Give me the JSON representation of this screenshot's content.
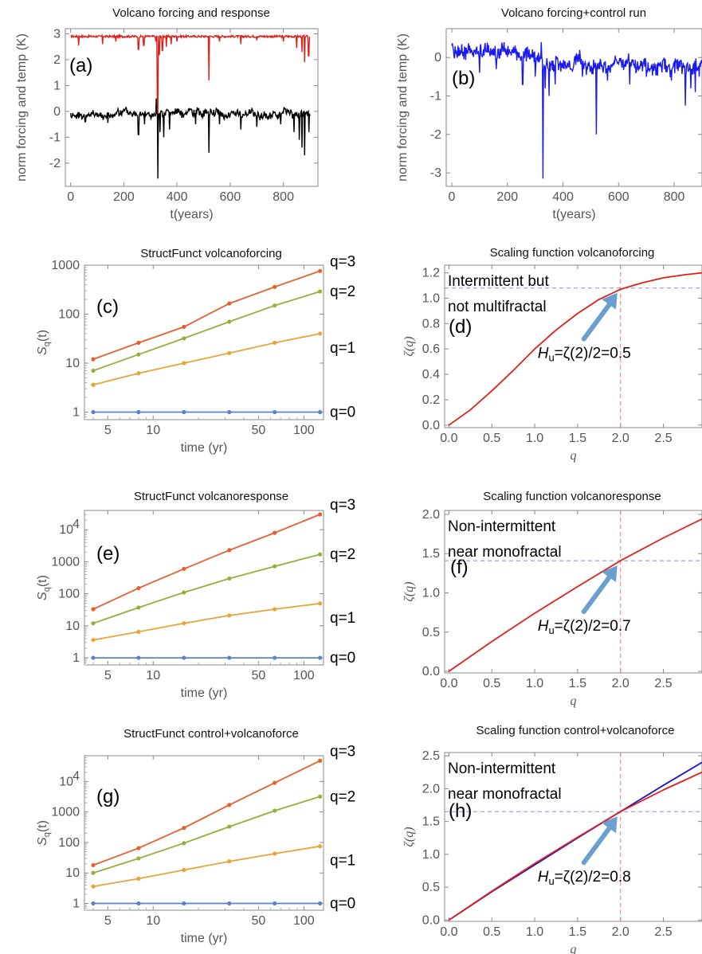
{
  "chart_data": [
    {
      "id": "a",
      "type": "line",
      "title": "Volcano forcing and response",
      "panel_label": "(a)",
      "xlabel": "t(years)",
      "ylabel": "norm forcing and temp (K)",
      "xlim": [
        -20,
        930
      ],
      "ylim": [
        -2.9,
        3.2
      ],
      "xticks": [
        0,
        200,
        400,
        600,
        800
      ],
      "yticks": [
        -2,
        -1,
        0,
        1,
        2,
        3
      ],
      "series": [
        {
          "color": "#e0201a",
          "base": 2.9,
          "dips": [
            [
              30,
              2.55
            ],
            [
              120,
              2.6
            ],
            [
              170,
              2.7
            ],
            [
              255,
              2.4
            ],
            [
              275,
              2.55
            ],
            [
              320,
              2.7
            ],
            [
              327,
              -0.15
            ],
            [
              333,
              2.2
            ],
            [
              345,
              2.35
            ],
            [
              360,
              2.5
            ],
            [
              378,
              2.6
            ],
            [
              400,
              2.7
            ],
            [
              520,
              1.2
            ],
            [
              560,
              2.7
            ],
            [
              640,
              2.6
            ],
            [
              700,
              2.75
            ],
            [
              800,
              2.7
            ],
            [
              850,
              2.45
            ],
            [
              870,
              2.3
            ],
            [
              880,
              1.9
            ],
            [
              895,
              2.15
            ]
          ]
        },
        {
          "color": "#000000",
          "base": -0.1,
          "dips": [
            [
              55,
              -0.4
            ],
            [
              140,
              -0.45
            ],
            [
              255,
              -0.9
            ],
            [
              278,
              -0.5
            ],
            [
              322,
              0.5
            ],
            [
              328,
              -2.6
            ],
            [
              336,
              -0.8
            ],
            [
              350,
              -1.0
            ],
            [
              372,
              -0.7
            ],
            [
              470,
              -0.5
            ],
            [
              520,
              -1.6
            ],
            [
              560,
              -0.5
            ],
            [
              640,
              -0.7
            ],
            [
              700,
              -0.6
            ],
            [
              790,
              -0.5
            ],
            [
              840,
              -0.8
            ],
            [
              860,
              -1.1
            ],
            [
              870,
              -1.4
            ],
            [
              880,
              -1.7
            ],
            [
              896,
              -0.8
            ]
          ]
        }
      ]
    },
    {
      "id": "b",
      "type": "line",
      "title": "Volcano forcing+control run",
      "panel_label": "(b)",
      "xlabel": "t(years)",
      "ylabel": "norm forcing and temp (K)",
      "xlim": [
        -20,
        900
      ],
      "ylim": [
        -3.35,
        0.75
      ],
      "xticks": [
        0,
        200,
        400,
        600,
        800
      ],
      "yticks": [
        -3,
        -2,
        -1,
        0
      ],
      "series": [
        {
          "color": "#1a1aee",
          "dips": [
            [
              100,
              -0.4
            ],
            [
              160,
              -0.3
            ],
            [
              255,
              -0.7
            ],
            [
              300,
              -0.5
            ],
            [
              322,
              0.4
            ],
            [
              328,
              -3.15
            ],
            [
              336,
              -0.8
            ],
            [
              350,
              -1.0
            ],
            [
              372,
              -0.7
            ],
            [
              470,
              -0.5
            ],
            [
              520,
              -2.0
            ],
            [
              560,
              -0.6
            ],
            [
              640,
              -0.7
            ],
            [
              700,
              -0.5
            ],
            [
              790,
              -0.6
            ],
            [
              840,
              -1.25
            ],
            [
              860,
              -0.8
            ],
            [
              876,
              -0.9
            ],
            [
              890,
              -0.5
            ]
          ]
        }
      ]
    },
    {
      "id": "c",
      "type": "line",
      "scale": "loglog",
      "title": "StructFunct volcanoforcing",
      "panel_label": "(c)",
      "xlabel": "time (yr)",
      "ylabel": "S_q(t)",
      "xlim": [
        3.5,
        135
      ],
      "ylim": [
        0.7,
        1000
      ],
      "xticks": [
        {
          "v": 5,
          "l": "5"
        },
        {
          "v": 10,
          "l": "10"
        },
        {
          "v": 50,
          "l": "50"
        },
        {
          "v": 100,
          "l": "100"
        }
      ],
      "yticks": [
        {
          "v": 1,
          "l": "1"
        },
        {
          "v": 10,
          "l": "10"
        },
        {
          "v": 100,
          "l": "100"
        },
        {
          "v": 1000,
          "l": "1000"
        }
      ],
      "x": [
        4,
        8,
        16,
        32,
        64,
        128
      ],
      "series": [
        {
          "name": "q=3",
          "color": "#e6602e",
          "values": [
            12,
            26,
            55,
            165,
            360,
            760
          ]
        },
        {
          "name": "q=2",
          "color": "#8fb33a",
          "values": [
            7,
            15,
            32,
            70,
            150,
            290
          ]
        },
        {
          "name": "q=1",
          "color": "#e8a33a",
          "values": [
            3.6,
            6.2,
            10,
            16,
            26,
            40
          ]
        },
        {
          "name": "q=0",
          "color": "#5b82c6",
          "values": [
            1,
            1,
            1,
            1,
            1,
            1
          ]
        }
      ]
    },
    {
      "id": "d",
      "type": "line",
      "title": "Scaling function volcanoforcing",
      "panel_label": "(d)",
      "xlabel": "q",
      "ylabel": "ζ(q)",
      "xlim": [
        -0.05,
        2.95
      ],
      "ylim": [
        -0.02,
        1.26
      ],
      "xticks": [
        0,
        0.5,
        1,
        1.5,
        2,
        2.5
      ],
      "yticks": [
        0,
        0.2,
        0.4,
        0.6,
        0.8,
        1.0,
        1.2
      ],
      "hline": 1.08,
      "vline": 2.0,
      "annotation": [
        "Intermittent but",
        "not multifractal"
      ],
      "hu_prefix": "H",
      "hu_sub": "u",
      "hu_text": "=ζ(2)/2=0.5",
      "series": [
        {
          "color": "#e0201a",
          "x": [
            0,
            0.25,
            0.5,
            0.75,
            1.0,
            1.25,
            1.5,
            1.75,
            2.0,
            2.25,
            2.5,
            2.75,
            2.95
          ],
          "values": [
            0,
            0.12,
            0.27,
            0.43,
            0.6,
            0.75,
            0.88,
            0.99,
            1.07,
            1.12,
            1.16,
            1.185,
            1.2
          ]
        }
      ]
    },
    {
      "id": "e",
      "type": "line",
      "scale": "loglog",
      "title": "StructFunct volcanoresponse",
      "panel_label": "(e)",
      "xlabel": "time (yr)",
      "ylabel": "S_q(t)",
      "xlim": [
        3.5,
        135
      ],
      "ylim": [
        0.6,
        40000
      ],
      "xticks": [
        {
          "v": 5,
          "l": "5"
        },
        {
          "v": 10,
          "l": "10"
        },
        {
          "v": 50,
          "l": "50"
        },
        {
          "v": 100,
          "l": "100"
        }
      ],
      "yticks": [
        {
          "v": 1,
          "l": "1"
        },
        {
          "v": 10,
          "l": "10"
        },
        {
          "v": 100,
          "l": "100"
        },
        {
          "v": 1000,
          "l": "1000"
        },
        {
          "v": 10000,
          "l": "10",
          "sup": "4"
        }
      ],
      "x": [
        4,
        8,
        16,
        32,
        64,
        128
      ],
      "series": [
        {
          "name": "q=3",
          "color": "#e6602e",
          "values": [
            33,
            150,
            600,
            2300,
            8000,
            30000
          ]
        },
        {
          "name": "q=2",
          "color": "#8fb33a",
          "values": [
            12,
            37,
            110,
            300,
            720,
            1700
          ]
        },
        {
          "name": "q=1",
          "color": "#e8a33a",
          "values": [
            3.6,
            6.5,
            12,
            21,
            33,
            50
          ]
        },
        {
          "name": "q=0",
          "color": "#5b82c6",
          "values": [
            1,
            1,
            1,
            1,
            1,
            1
          ]
        }
      ]
    },
    {
      "id": "f",
      "type": "line",
      "title": "Scaling function volcanoresponse",
      "panel_label": "(f)",
      "xlabel": "q",
      "ylabel": "ζ(q)",
      "xlim": [
        -0.05,
        2.95
      ],
      "ylim": [
        -0.02,
        2.05
      ],
      "xticks": [
        0,
        0.5,
        1,
        1.5,
        2,
        2.5
      ],
      "yticks": [
        0,
        0.5,
        1.0,
        1.5,
        2.0
      ],
      "hline": 1.41,
      "vline": 2.0,
      "annotation": [
        "Non-intermittent",
        "near monofractal"
      ],
      "hu_prefix": "H",
      "hu_sub": "u",
      "hu_text": "=ζ(2)/2=0.7",
      "series": [
        {
          "color": "#e0201a",
          "x": [
            0,
            0.5,
            1.0,
            1.5,
            2.0,
            2.5,
            2.95
          ],
          "values": [
            0,
            0.38,
            0.74,
            1.08,
            1.41,
            1.7,
            1.94
          ]
        }
      ]
    },
    {
      "id": "g",
      "type": "line",
      "scale": "loglog",
      "title": "StructFunct control+volcanoforce",
      "panel_label": "(g)",
      "xlabel": "time (yr)",
      "ylabel": "S_q(t)",
      "xlim": [
        3.5,
        135
      ],
      "ylim": [
        0.6,
        70000
      ],
      "xticks": [
        {
          "v": 5,
          "l": "5"
        },
        {
          "v": 10,
          "l": "10"
        },
        {
          "v": 50,
          "l": "50"
        },
        {
          "v": 100,
          "l": "100"
        }
      ],
      "yticks": [
        {
          "v": 1,
          "l": "1"
        },
        {
          "v": 10,
          "l": "10"
        },
        {
          "v": 100,
          "l": "100"
        },
        {
          "v": 1000,
          "l": "1000"
        },
        {
          "v": 10000,
          "l": "10",
          "sup": "4"
        }
      ],
      "x": [
        4,
        8,
        16,
        32,
        64,
        128
      ],
      "series": [
        {
          "name": "q=3",
          "color": "#e6602e",
          "values": [
            18,
            65,
            300,
            1700,
            9000,
            48000
          ]
        },
        {
          "name": "q=2",
          "color": "#8fb33a",
          "values": [
            10,
            30,
            95,
            330,
            1100,
            3200
          ]
        },
        {
          "name": "q=1",
          "color": "#e8a33a",
          "values": [
            3.6,
            6.5,
            12.5,
            24,
            43,
            75
          ]
        },
        {
          "name": "q=0",
          "color": "#5b82c6",
          "values": [
            1,
            1,
            1,
            1,
            1,
            1
          ]
        }
      ]
    },
    {
      "id": "h",
      "type": "line",
      "title": "Scaling function control+volcanoforce",
      "panel_label": "(h)",
      "xlabel": "q",
      "ylabel": "ζ(q)",
      "xlim": [
        -0.05,
        2.95
      ],
      "ylim": [
        -0.02,
        2.55
      ],
      "xticks": [
        0,
        0.5,
        1,
        1.5,
        2,
        2.5
      ],
      "yticks": [
        0,
        0.5,
        1.0,
        1.5,
        2.0,
        2.5
      ],
      "hline": 1.65,
      "vline": 2.0,
      "annotation": [
        "Non-intermittent",
        "near monofractal"
      ],
      "hu_prefix": "H",
      "hu_sub": "u",
      "hu_text": "=ζ(2)/2=0.8",
      "series": [
        {
          "color": "#1a1acc",
          "x": [
            0,
            0.5,
            1.0,
            1.5,
            2.0,
            2.5,
            2.95
          ],
          "values": [
            0,
            0.43,
            0.84,
            1.25,
            1.65,
            2.05,
            2.4
          ]
        },
        {
          "color": "#e0201a",
          "x": [
            0,
            0.5,
            1.0,
            1.5,
            2.0,
            2.5,
            2.95
          ],
          "values": [
            0,
            0.44,
            0.86,
            1.26,
            1.65,
            1.98,
            2.25
          ]
        }
      ]
    }
  ]
}
